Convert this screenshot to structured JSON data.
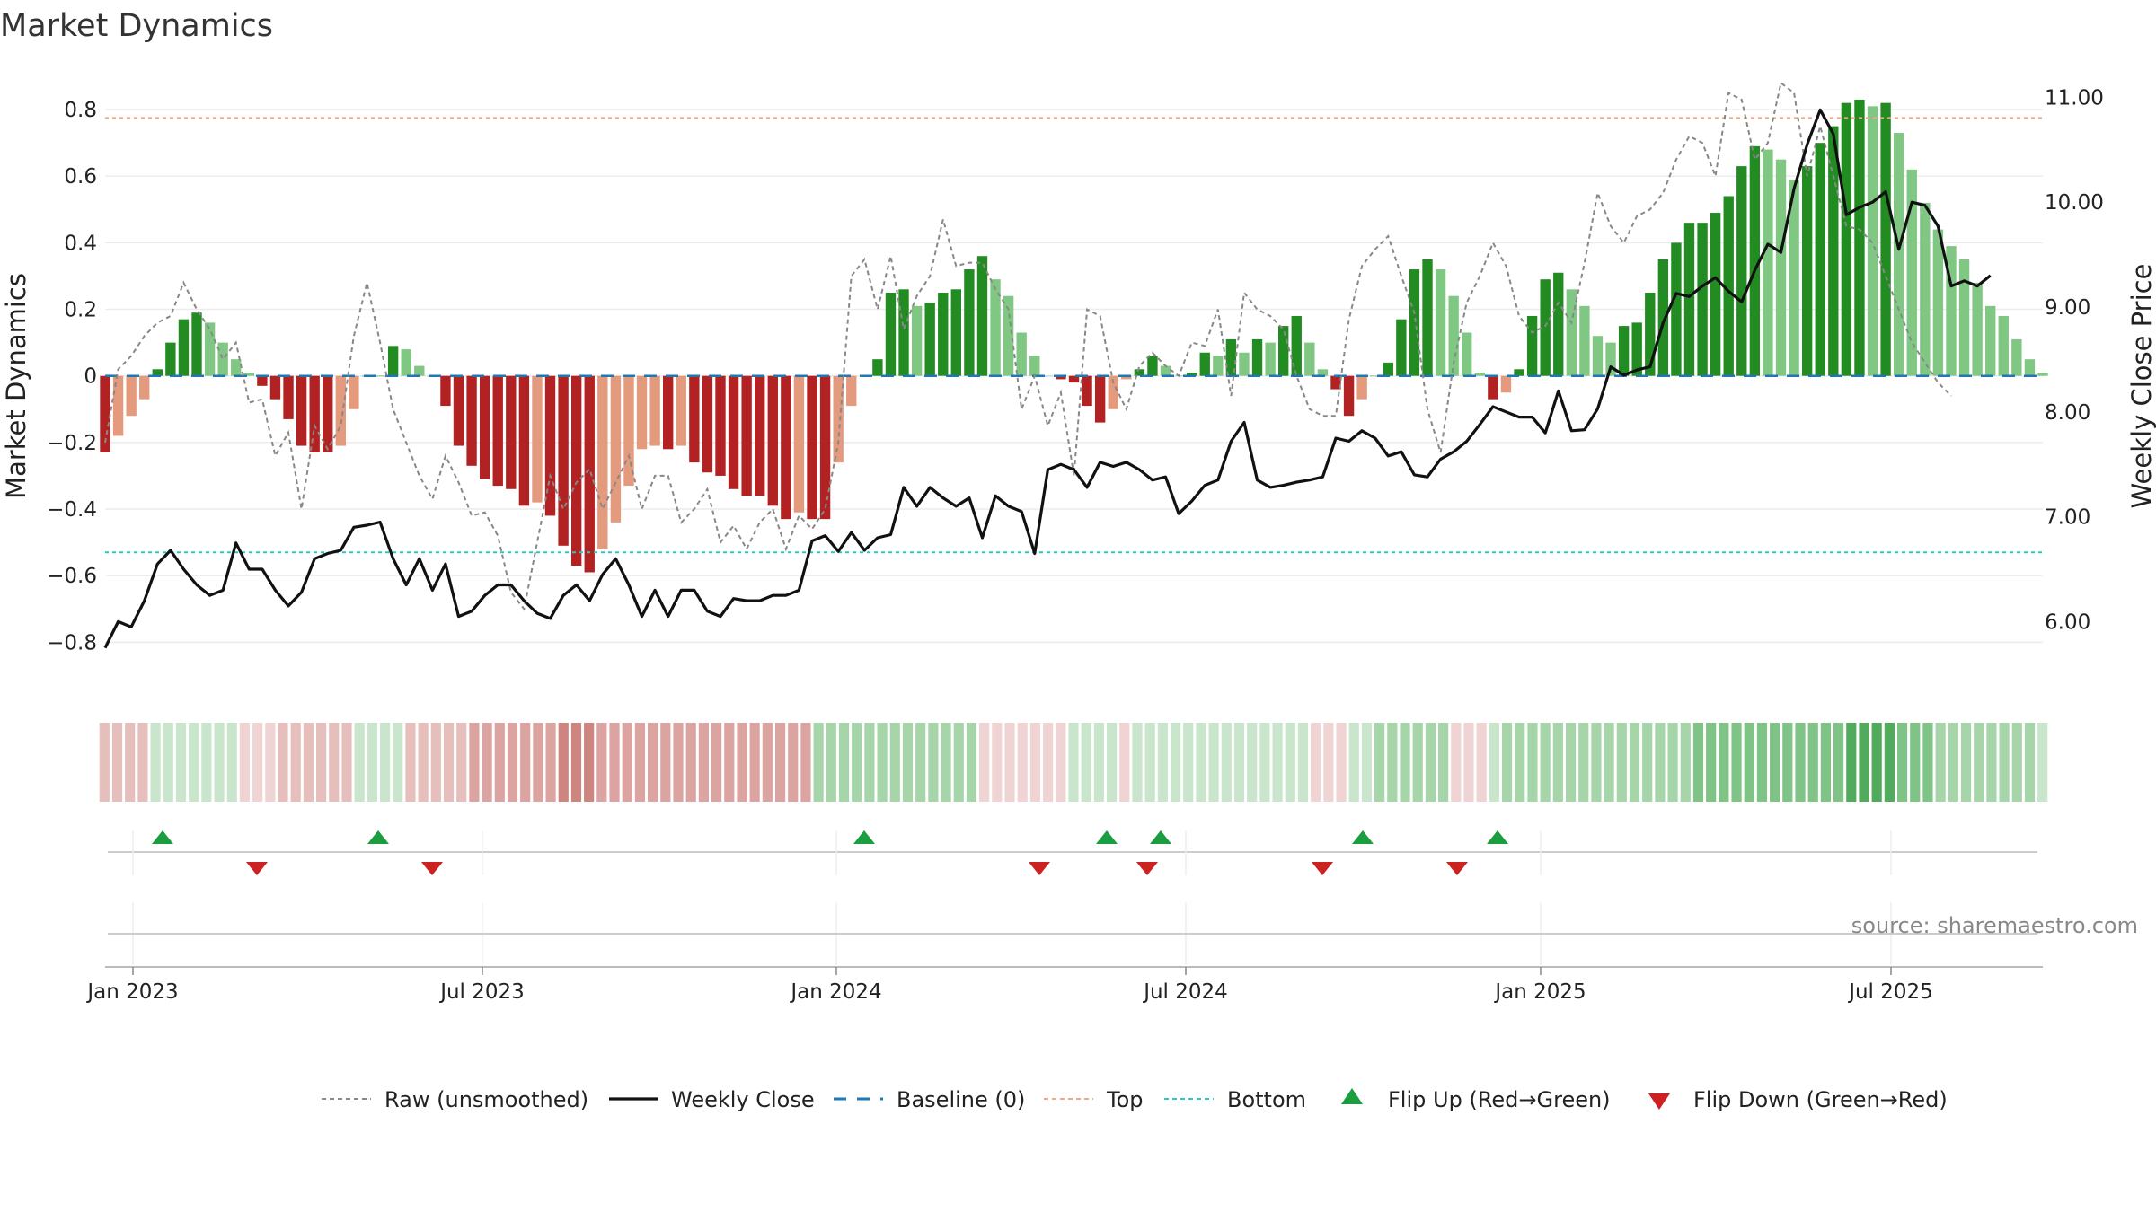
{
  "title": "Market Dynamics",
  "source": "source: sharemaestro.com",
  "chart_data": {
    "type": "bar",
    "ylabel": "Market Dynamics",
    "y2label": "Weekly Close Price",
    "ylim": [
      -0.88,
      0.9
    ],
    "y2lim": [
      5.55,
      11.2
    ],
    "yticks": [
      -0.8,
      -0.6,
      -0.4,
      -0.2,
      0,
      0.2,
      0.4,
      0.6,
      0.8
    ],
    "y2ticks": [
      6.0,
      7.0,
      8.0,
      9.0,
      10.0,
      11.0
    ],
    "top_line": 0.775,
    "bottom_line": -0.53,
    "baseline": 0,
    "colors": {
      "bar_strong_red": "#b22222",
      "bar_light_red": "#e39a7d",
      "bar_strong_green": "#228b22",
      "bar_light_green": "#81c784",
      "raw": "#888888",
      "close": "#111111",
      "baseline": "#1f77b4",
      "top": "#f4a582",
      "bottom": "#2ec4c4",
      "flip_up": "#1a9e3f",
      "flip_down": "#cc2222"
    },
    "x_tick_labels": [
      "Jan 2023",
      "Jul 2023",
      "Jan 2024",
      "Jul 2024",
      "Jan 2025",
      "Jul 2025"
    ],
    "x_tick_weeks": [
      1,
      37,
      53,
      89,
      105,
      141,
      157,
      193,
      209,
      245,
      261,
      297
    ],
    "series": [
      {
        "name": "Market Dynamics (smoothed)",
        "values": [
          -0.23,
          -0.18,
          -0.12,
          -0.07,
          0.02,
          0.1,
          0.17,
          0.19,
          0.16,
          0.1,
          0.05,
          0.01,
          -0.03,
          -0.07,
          -0.13,
          -0.21,
          -0.23,
          -0.23,
          -0.21,
          -0.1,
          0.0,
          0.0,
          0.09,
          0.08,
          0.03,
          0.0,
          -0.09,
          -0.21,
          -0.27,
          -0.31,
          -0.33,
          -0.34,
          -0.39,
          -0.38,
          -0.42,
          -0.51,
          -0.57,
          -0.59,
          -0.52,
          -0.44,
          -0.33,
          -0.22,
          -0.21,
          -0.22,
          -0.21,
          -0.26,
          -0.29,
          -0.3,
          -0.34,
          -0.36,
          -0.36,
          -0.39,
          -0.43,
          -0.41,
          -0.43,
          -0.43,
          -0.26,
          -0.09,
          0.0,
          0.05,
          0.25,
          0.26,
          0.21,
          0.22,
          0.25,
          0.26,
          0.32,
          0.36,
          0.29,
          0.24,
          0.13,
          0.06,
          0.0,
          -0.01,
          -0.02,
          -0.09,
          -0.14,
          -0.1,
          -0.01,
          0.02,
          0.06,
          0.03,
          0.0,
          0.01,
          0.07,
          0.06,
          0.11,
          0.07,
          0.11,
          0.1,
          0.15,
          0.18,
          0.1,
          0.02,
          -0.04,
          -0.12,
          -0.07,
          0.0,
          0.04,
          0.17,
          0.32,
          0.35,
          0.32,
          0.24,
          0.13,
          0.01,
          -0.07,
          -0.05,
          0.02,
          0.18,
          0.29,
          0.31,
          0.26,
          0.21,
          0.12,
          0.1,
          0.15,
          0.16,
          0.25,
          0.35,
          0.4,
          0.46,
          0.46,
          0.49,
          0.54,
          0.63,
          0.69,
          0.68,
          0.65,
          0.59,
          0.63,
          0.7,
          0.75,
          0.82,
          0.83,
          0.81,
          0.82,
          0.73,
          0.62,
          0.52,
          0.44,
          0.39,
          0.35,
          0.28,
          0.21,
          0.18,
          0.11,
          0.05,
          0.01
        ]
      },
      {
        "name": "Raw (unsmoothed)",
        "values": [
          -0.2,
          0.02,
          0.06,
          0.12,
          0.16,
          0.18,
          0.28,
          0.2,
          0.14,
          0.05,
          0.1,
          -0.08,
          -0.07,
          -0.24,
          -0.17,
          -0.4,
          -0.15,
          -0.22,
          -0.15,
          0.12,
          0.28,
          0.1,
          -0.1,
          -0.2,
          -0.3,
          -0.37,
          -0.24,
          -0.32,
          -0.42,
          -0.41,
          -0.48,
          -0.65,
          -0.7,
          -0.5,
          -0.3,
          -0.4,
          -0.32,
          -0.28,
          -0.4,
          -0.32,
          -0.24,
          -0.4,
          -0.3,
          -0.3,
          -0.44,
          -0.4,
          -0.34,
          -0.5,
          -0.45,
          -0.52,
          -0.44,
          -0.4,
          -0.52,
          -0.42,
          -0.46,
          -0.4,
          -0.2,
          0.3,
          0.35,
          0.2,
          0.36,
          0.14,
          0.24,
          0.3,
          0.47,
          0.33,
          0.34,
          0.34,
          0.26,
          0.2,
          -0.1,
          0.0,
          -0.15,
          -0.05,
          -0.3,
          0.2,
          0.18,
          -0.02,
          -0.1,
          0.03,
          0.07,
          0.03,
          0.0,
          0.1,
          0.09,
          0.2,
          -0.06,
          0.25,
          0.2,
          0.18,
          0.14,
          0.0,
          -0.1,
          -0.12,
          -0.12,
          0.17,
          0.33,
          0.38,
          0.42,
          0.3,
          0.19,
          -0.1,
          -0.23,
          0.04,
          0.22,
          0.3,
          0.4,
          0.33,
          0.18,
          0.13,
          0.15,
          0.22,
          0.16,
          0.34,
          0.55,
          0.45,
          0.4,
          0.48,
          0.5,
          0.55,
          0.65,
          0.72,
          0.7,
          0.6,
          0.85,
          0.83,
          0.65,
          0.7,
          0.88,
          0.85,
          0.6,
          0.75,
          0.6,
          0.45,
          0.44,
          0.4,
          0.3,
          0.2,
          0.1,
          0.04,
          -0.02,
          -0.06
        ]
      },
      {
        "name": "Weekly Close",
        "axis": "right",
        "values": [
          5.75,
          6.0,
          5.95,
          6.2,
          6.55,
          6.68,
          6.5,
          6.35,
          6.25,
          6.3,
          6.75,
          6.5,
          6.5,
          6.3,
          6.15,
          6.28,
          6.6,
          6.65,
          6.68,
          6.9,
          6.92,
          6.95,
          6.6,
          6.35,
          6.6,
          6.3,
          6.55,
          6.05,
          6.1,
          6.25,
          6.35,
          6.35,
          6.2,
          6.08,
          6.03,
          6.25,
          6.35,
          6.2,
          6.45,
          6.6,
          6.35,
          6.05,
          6.3,
          6.05,
          6.3,
          6.3,
          6.1,
          6.05,
          6.22,
          6.2,
          6.2,
          6.25,
          6.25,
          6.3,
          6.77,
          6.82,
          6.67,
          6.85,
          6.68,
          6.8,
          6.83,
          7.28,
          7.1,
          7.28,
          7.18,
          7.1,
          7.18,
          6.8,
          7.2,
          7.1,
          7.05,
          6.65,
          7.45,
          7.5,
          7.45,
          7.28,
          7.52,
          7.48,
          7.52,
          7.45,
          7.35,
          7.38,
          7.03,
          7.15,
          7.3,
          7.35,
          7.72,
          7.9,
          7.35,
          7.28,
          7.3,
          7.33,
          7.35,
          7.38,
          7.75,
          7.72,
          7.82,
          7.75,
          7.58,
          7.62,
          7.4,
          7.38,
          7.55,
          7.62,
          7.72,
          7.88,
          8.05,
          8.0,
          7.95,
          7.95,
          7.8,
          8.2,
          7.82,
          7.83,
          8.03,
          8.43,
          8.35,
          8.4,
          8.43,
          8.85,
          9.13,
          9.1,
          9.2,
          9.28,
          9.15,
          9.05,
          9.35,
          9.6,
          9.52,
          10.13,
          10.55,
          10.88,
          10.65,
          9.88,
          9.95,
          10.0,
          10.1,
          9.55,
          10.0,
          9.97,
          9.77,
          9.2,
          9.25,
          9.2,
          9.3
        ]
      }
    ],
    "heat_strip": [
      -2,
      -2,
      -2,
      -2,
      1,
      1,
      1,
      1,
      1,
      1,
      1,
      -1,
      -1,
      -1,
      -2,
      -2,
      -2,
      -2,
      -2,
      -2,
      1,
      1,
      1,
      1,
      -2,
      -2,
      -2,
      -2,
      -2,
      -3,
      -3,
      -3,
      -3,
      -3,
      -3,
      -3,
      -4,
      -4,
      -4,
      -3,
      -3,
      -3,
      -3,
      -3,
      -3,
      -3,
      -3,
      -3,
      -3,
      -3,
      -3,
      -3,
      -3,
      -3,
      -3,
      -3,
      2,
      2,
      2,
      2,
      2,
      2,
      2,
      2,
      2,
      2,
      2,
      2,
      2,
      -1,
      -1,
      -1,
      -1,
      -1,
      -1,
      -1,
      1,
      1,
      1,
      1,
      -1,
      1,
      1,
      1,
      1,
      1,
      1,
      1,
      1,
      1,
      1,
      1,
      1,
      1,
      1,
      -1,
      -1,
      -1,
      1,
      1,
      2,
      2,
      2,
      2,
      2,
      2,
      -1,
      -1,
      -1,
      1,
      2,
      2,
      2,
      2,
      2,
      2,
      2,
      2,
      2,
      2,
      2,
      2,
      2,
      2,
      2,
      3,
      3,
      3,
      3,
      3,
      3,
      3,
      3,
      3,
      3,
      3,
      3,
      4,
      4,
      4,
      4,
      3,
      3,
      3,
      2,
      2,
      2,
      2,
      2,
      2,
      2,
      2,
      1
    ],
    "flip_up_weeks": [
      5,
      21,
      57,
      72,
      76,
      91,
      101
    ],
    "flip_down_weeks": [
      12,
      25,
      70,
      78,
      91.5,
      101.5
    ],
    "flip_down_positions": [
      12,
      25,
      70,
      78,
      90,
      100
    ],
    "legend": [
      {
        "label": "Raw (unsmoothed)",
        "kind": "dotted",
        "color": "#888888"
      },
      {
        "label": "Weekly Close",
        "kind": "solid",
        "color": "#111111"
      },
      {
        "label": "Baseline (0)",
        "kind": "dashed",
        "color": "#1f77b4"
      },
      {
        "label": "Top",
        "kind": "dotted",
        "color": "#f4a582"
      },
      {
        "label": "Bottom",
        "kind": "dotted",
        "color": "#2ec4c4"
      },
      {
        "label": "Flip Up (Red→Green)",
        "kind": "tri-up",
        "color": "#1a9e3f"
      },
      {
        "label": "Flip Down (Green→Red)",
        "kind": "tri-down",
        "color": "#cc2222"
      }
    ]
  }
}
